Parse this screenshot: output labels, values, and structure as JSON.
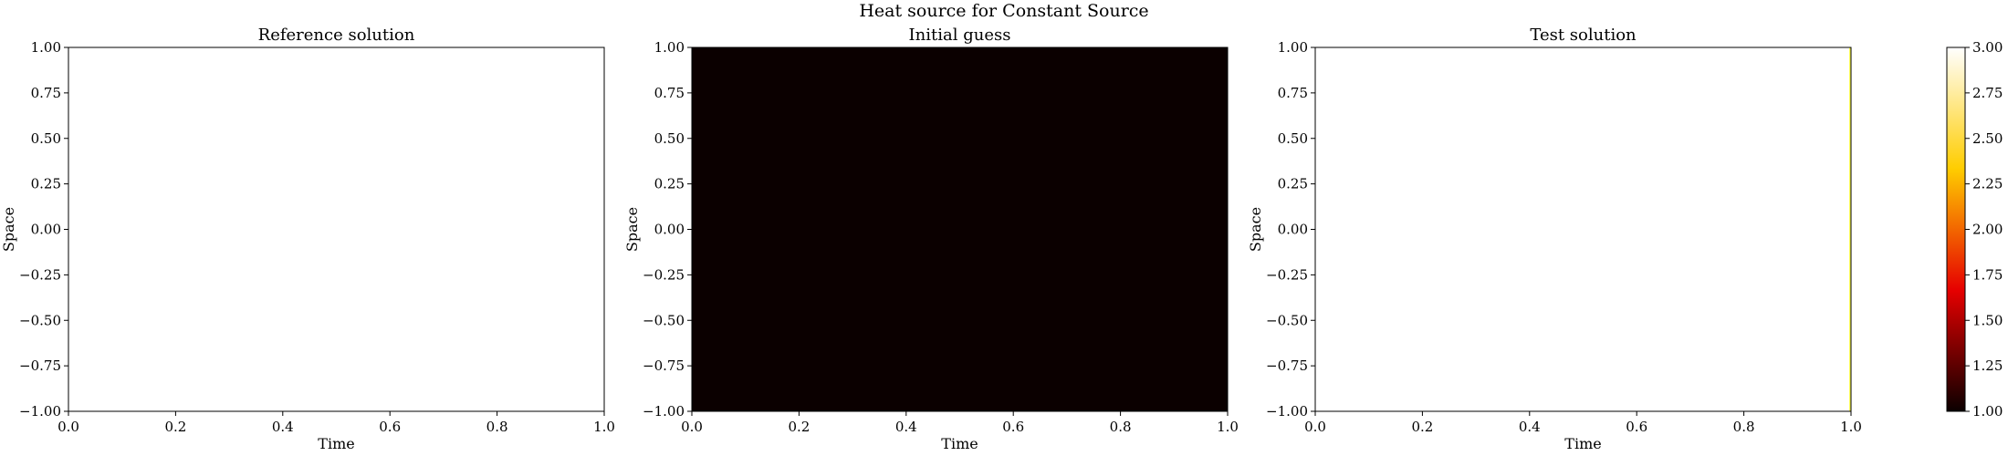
{
  "figure": {
    "title": "Heat source for Constant Source"
  },
  "chart_data": [
    {
      "type": "heatmap",
      "title": "Reference solution",
      "xlabel": "Time",
      "ylabel": "Space",
      "xlim": [
        0.0,
        1.0
      ],
      "ylim": [
        -1.0,
        1.0
      ],
      "xticks": [
        "0.0",
        "0.2",
        "0.4",
        "0.6",
        "0.8",
        "1.0"
      ],
      "yticks": [
        "1.00",
        "0.75",
        "0.50",
        "0.25",
        "0.00",
        "−0.25",
        "−0.50",
        "−0.75",
        "−1.00"
      ],
      "value": 3.0,
      "fill_color": "#ffffff"
    },
    {
      "type": "heatmap",
      "title": "Initial guess",
      "xlabel": "Time",
      "ylabel": "Space",
      "xlim": [
        0.0,
        1.0
      ],
      "ylim": [
        -1.0,
        1.0
      ],
      "xticks": [
        "0.0",
        "0.2",
        "0.4",
        "0.6",
        "0.8",
        "1.0"
      ],
      "yticks": [
        "1.00",
        "0.75",
        "0.50",
        "0.25",
        "0.00",
        "−0.25",
        "−0.50",
        "−0.75",
        "−1.00"
      ],
      "value": 1.0,
      "fill_color": "#0b0000"
    },
    {
      "type": "heatmap",
      "title": "Test solution",
      "xlabel": "Time",
      "ylabel": "Space",
      "xlim": [
        0.0,
        1.0
      ],
      "ylim": [
        -1.0,
        1.0
      ],
      "xticks": [
        "0.0",
        "0.2",
        "0.4",
        "0.6",
        "0.8",
        "1.0"
      ],
      "yticks": [
        "1.00",
        "0.75",
        "0.50",
        "0.25",
        "0.00",
        "−0.25",
        "−0.50",
        "−0.75",
        "−1.00"
      ],
      "value": 3.0,
      "fill_color": "#ffffff",
      "edge_highlight_color": "#ffff55"
    }
  ],
  "colorbar": {
    "colormap": "hot",
    "range": [
      1.0,
      3.0
    ],
    "ticks": [
      "3.00",
      "2.75",
      "2.50",
      "2.25",
      "2.00",
      "1.75",
      "1.50",
      "1.25",
      "1.00"
    ],
    "stops": [
      "#0b0000",
      "#e60000",
      "#ffcd00",
      "#ffffff"
    ]
  }
}
